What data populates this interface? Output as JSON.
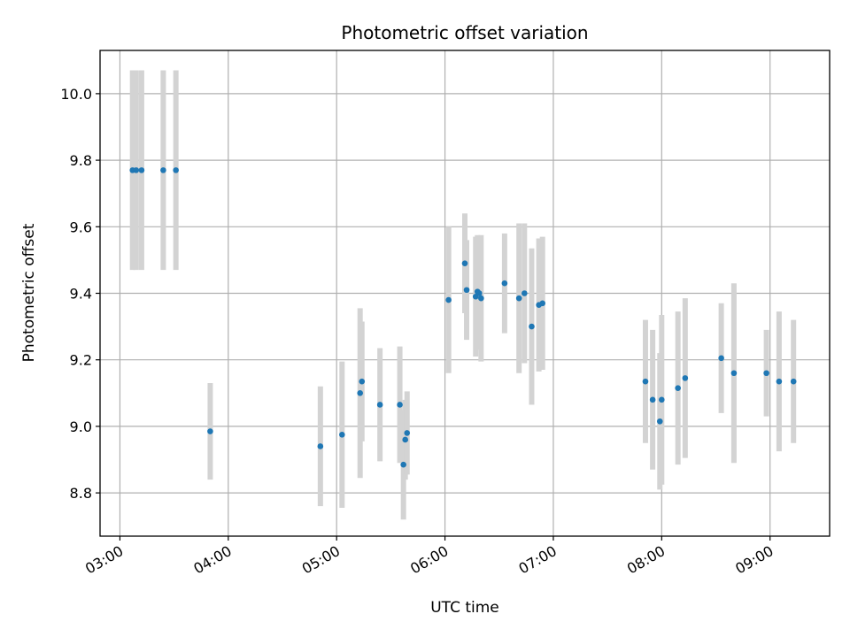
{
  "chart_data": {
    "type": "scatter",
    "title": "Photometric offset variation",
    "xlabel": "UTC time",
    "ylabel": "Photometric offset",
    "x_unit": "UTC time (HH:MM)",
    "xlim": [
      "02:49",
      "09:33"
    ],
    "ylim": [
      8.67,
      10.13
    ],
    "x_ticks": [
      "03:00",
      "04:00",
      "05:00",
      "06:00",
      "07:00",
      "08:00",
      "09:00"
    ],
    "y_ticks": [
      "8.8",
      "9.0",
      "9.2",
      "9.4",
      "9.6",
      "9.8",
      "10.0"
    ],
    "y_tick_values": [
      8.8,
      9.0,
      9.2,
      9.4,
      9.6,
      9.8,
      10.0
    ],
    "grid": true,
    "colors": {
      "points": "#1f77b4",
      "error_bars": "#d3d3d3",
      "grid": "#b0b0b0"
    },
    "series": [
      {
        "points": [
          {
            "x": "03:07",
            "y": 9.77,
            "err": 0.3
          },
          {
            "x": "03:09",
            "y": 9.77,
            "err": 0.3
          },
          {
            "x": "03:12",
            "y": 9.77,
            "err": 0.3
          },
          {
            "x": "03:24",
            "y": 9.77,
            "err": 0.3
          },
          {
            "x": "03:31",
            "y": 9.77,
            "err": 0.3
          },
          {
            "x": "03:50",
            "y": 8.985,
            "err": 0.145
          },
          {
            "x": "04:51",
            "y": 8.94,
            "err": 0.18
          },
          {
            "x": "05:03",
            "y": 8.975,
            "err": 0.22
          },
          {
            "x": "05:13",
            "y": 9.1,
            "err": 0.255
          },
          {
            "x": "05:14",
            "y": 9.135,
            "err": 0.18
          },
          {
            "x": "05:24",
            "y": 9.065,
            "err": 0.17
          },
          {
            "x": "05:35",
            "y": 9.065,
            "err": 0.175
          },
          {
            "x": "05:37",
            "y": 8.885,
            "err": 0.165
          },
          {
            "x": "05:38",
            "y": 8.96,
            "err": 0.12
          },
          {
            "x": "05:39",
            "y": 8.98,
            "err": 0.125
          },
          {
            "x": "06:02",
            "y": 9.38,
            "err": 0.22
          },
          {
            "x": "06:11",
            "y": 9.49,
            "err": 0.15
          },
          {
            "x": "06:12",
            "y": 9.41,
            "err": 0.15
          },
          {
            "x": "06:17",
            "y": 9.39,
            "err": 0.18
          },
          {
            "x": "06:18",
            "y": 9.405,
            "err": 0.17
          },
          {
            "x": "06:19",
            "y": 9.4,
            "err": 0.17
          },
          {
            "x": "06:20",
            "y": 9.385,
            "err": 0.19
          },
          {
            "x": "06:33",
            "y": 9.43,
            "err": 0.15
          },
          {
            "x": "06:41",
            "y": 9.385,
            "err": 0.225
          },
          {
            "x": "06:44",
            "y": 9.4,
            "err": 0.21
          },
          {
            "x": "06:48",
            "y": 9.3,
            "err": 0.235
          },
          {
            "x": "06:52",
            "y": 9.365,
            "err": 0.2
          },
          {
            "x": "06:54",
            "y": 9.37,
            "err": 0.2
          },
          {
            "x": "07:51",
            "y": 9.135,
            "err": 0.185
          },
          {
            "x": "07:55",
            "y": 9.08,
            "err": 0.21
          },
          {
            "x": "07:59",
            "y": 9.015,
            "err": 0.205
          },
          {
            "x": "08:00",
            "y": 9.08,
            "err": 0.255
          },
          {
            "x": "08:09",
            "y": 9.115,
            "err": 0.23
          },
          {
            "x": "08:13",
            "y": 9.145,
            "err": 0.24
          },
          {
            "x": "08:33",
            "y": 9.205,
            "err": 0.165
          },
          {
            "x": "08:40",
            "y": 9.16,
            "err": 0.27
          },
          {
            "x": "08:58",
            "y": 9.16,
            "err": 0.13
          },
          {
            "x": "09:05",
            "y": 9.135,
            "err": 0.21
          },
          {
            "x": "09:13",
            "y": 9.135,
            "err": 0.185
          }
        ]
      }
    ]
  }
}
